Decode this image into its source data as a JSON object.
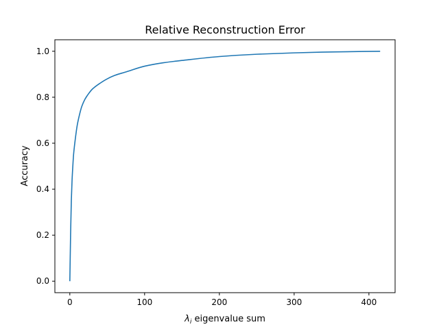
{
  "chart_data": {
    "type": "line",
    "title": "Relative Reconstruction Error",
    "xlabel_symbol": "λ",
    "xlabel_subscript": "i",
    "xlabel_text": " eigenvalue sum",
    "ylabel": "Accuracy",
    "xlim": [
      -20,
      435
    ],
    "ylim": [
      -0.05,
      1.05
    ],
    "xticks": [
      0,
      100,
      200,
      300,
      400
    ],
    "yticks": [
      0.0,
      0.2,
      0.4,
      0.6,
      0.8,
      1.0
    ],
    "xtick_labels": [
      "0",
      "100",
      "200",
      "300",
      "400"
    ],
    "ytick_labels": [
      "0.0",
      "0.2",
      "0.4",
      "0.6",
      "0.8",
      "1.0"
    ],
    "grid": false,
    "line_color": "#1f77b4",
    "series": [
      {
        "x": [
          0,
          1,
          2,
          3,
          4,
          5,
          7,
          10,
          13,
          16,
          20,
          25,
          30,
          40,
          50,
          60,
          75,
          100,
          125,
          150,
          200,
          250,
          300,
          350,
          415
        ],
        "y": [
          0.0,
          0.2,
          0.35,
          0.44,
          0.5,
          0.55,
          0.61,
          0.68,
          0.725,
          0.76,
          0.79,
          0.815,
          0.835,
          0.86,
          0.88,
          0.895,
          0.91,
          0.935,
          0.95,
          0.96,
          0.977,
          0.987,
          0.993,
          0.997,
          1.0
        ]
      }
    ]
  }
}
